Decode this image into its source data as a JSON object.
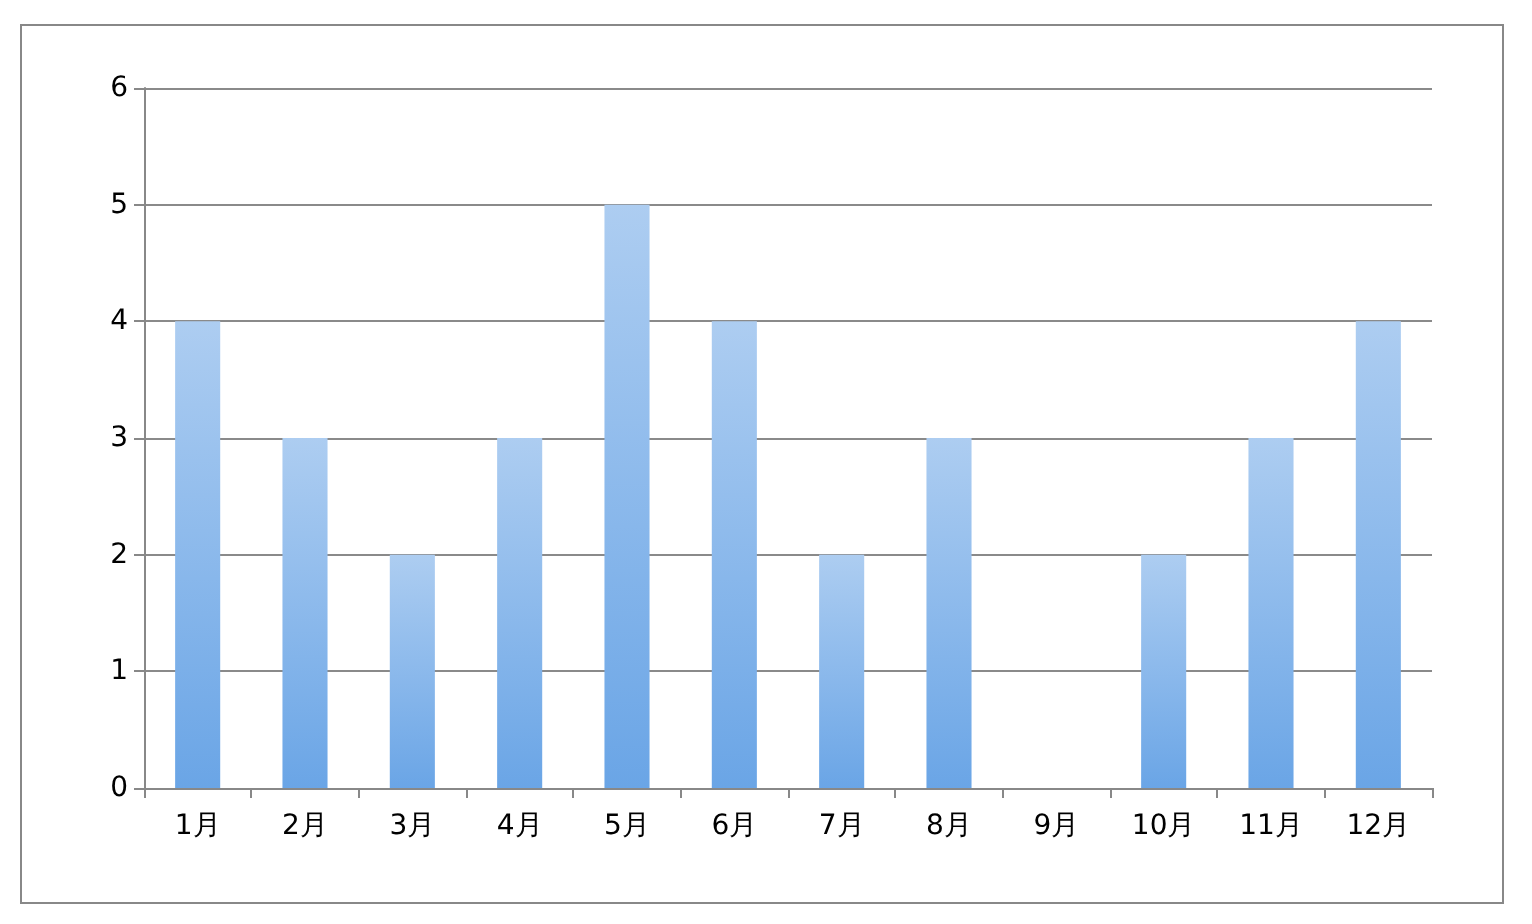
{
  "chart_data": {
    "type": "bar",
    "categories": [
      "1月",
      "2月",
      "3月",
      "4月",
      "5月",
      "6月",
      "7月",
      "8月",
      "9月",
      "10月",
      "11月",
      "12月"
    ],
    "values": [
      4,
      3,
      2,
      3,
      5,
      4,
      2,
      3,
      0,
      2,
      3,
      4
    ],
    "color": "#6aa5e6",
    "ylim": [
      0,
      6
    ],
    "yticks": [
      0,
      1,
      2,
      3,
      4,
      5,
      6
    ],
    "grid": "y"
  }
}
